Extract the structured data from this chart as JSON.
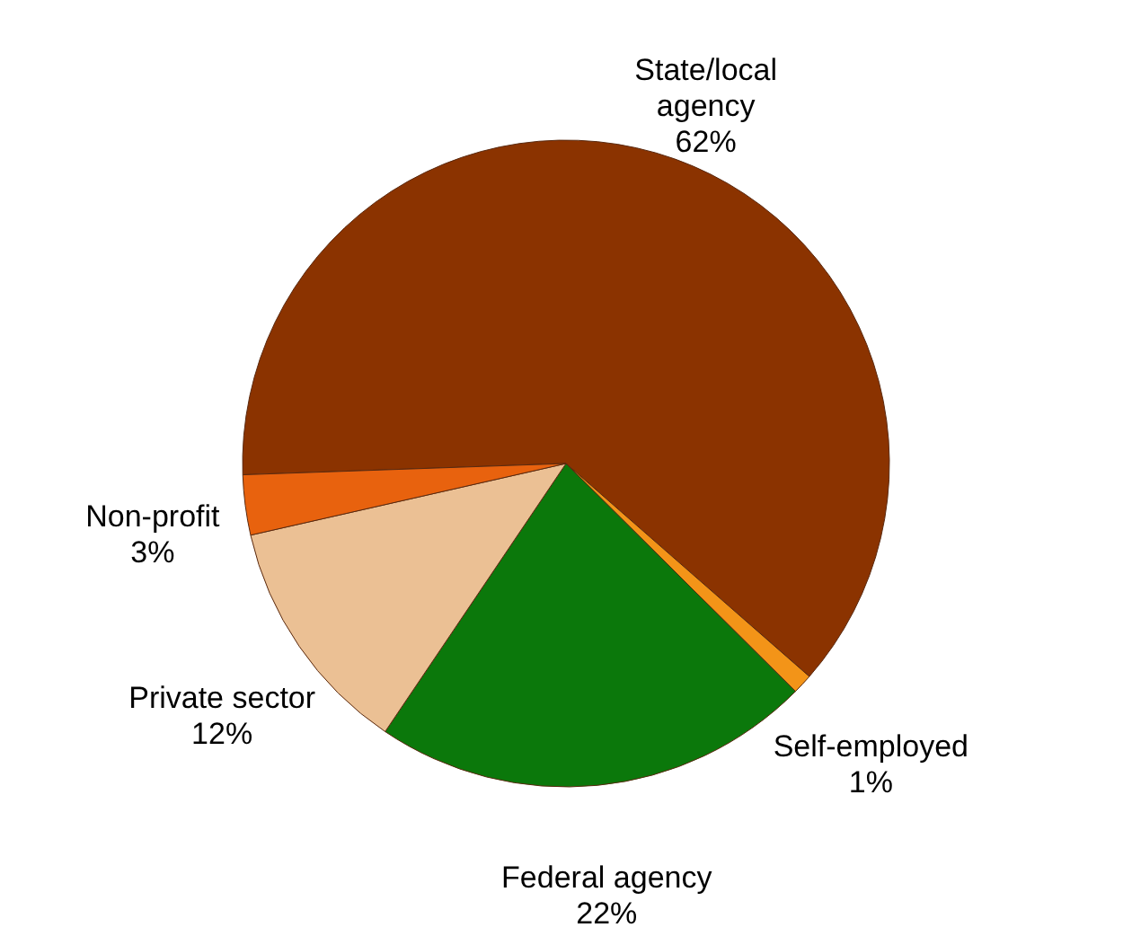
{
  "chart_data": {
    "type": "pie",
    "categories": [
      "State/local\nagency",
      "Self-employed",
      "Federal agency",
      "Private sector",
      "Non-profit"
    ],
    "values": [
      62,
      1,
      22,
      12,
      3
    ],
    "colors": [
      "#8b3300",
      "#f39418",
      "#0b780b",
      "#ebc094",
      "#e8620e"
    ],
    "value_labels": [
      "62%",
      "1%",
      "22%",
      "12%",
      "3%"
    ]
  }
}
